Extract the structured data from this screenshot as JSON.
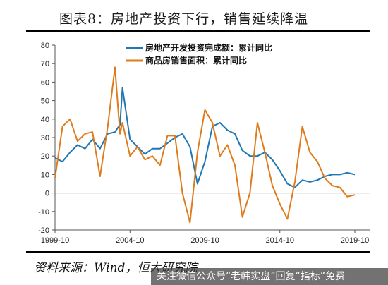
{
  "figure": {
    "title": "图表8：房地产投资下行，销售延续降温",
    "source": "资料来源：Wind，恒大研究院",
    "watermark": "关注微信公众号“老韩实盘”回复“指标”免费"
  },
  "chart_data": {
    "type": "line",
    "title": "",
    "xlabel": "",
    "ylabel": "",
    "ylim": [
      -20,
      80
    ],
    "yticks": [
      -20,
      -10,
      0,
      10,
      20,
      30,
      40,
      50,
      60,
      70,
      80
    ],
    "x_tick_labels": [
      "1999-10",
      "2004-10",
      "2009-10",
      "2014-10",
      "2019-10"
    ],
    "x_tick_values": [
      "1999-10",
      "2004-10",
      "2009-10",
      "2014-10",
      "2019-10"
    ],
    "x": [
      "1999-10",
      "2000-04",
      "2000-10",
      "2001-04",
      "2001-10",
      "2002-04",
      "2002-10",
      "2003-04",
      "2003-10",
      "2004-02",
      "2004-04",
      "2004-10",
      "2005-04",
      "2005-10",
      "2006-04",
      "2006-10",
      "2007-04",
      "2007-10",
      "2008-04",
      "2008-10",
      "2009-04",
      "2009-10",
      "2010-04",
      "2010-10",
      "2011-04",
      "2011-10",
      "2012-04",
      "2012-10",
      "2013-04",
      "2013-10",
      "2014-04",
      "2014-10",
      "2015-04",
      "2015-10",
      "2016-04",
      "2016-10",
      "2017-04",
      "2017-10",
      "2018-04",
      "2018-10",
      "2019-04",
      "2019-10"
    ],
    "legend_position": "top",
    "grid": false,
    "series": [
      {
        "name": "房地产开发投资完成额：累计同比",
        "color": "#1f77b4",
        "values": [
          19,
          17,
          22,
          26,
          24,
          29,
          24,
          32,
          33,
          37,
          57,
          29,
          25,
          21,
          24,
          24,
          27,
          30,
          32,
          25,
          5,
          17,
          36,
          38,
          34,
          32,
          23,
          20,
          20,
          22,
          18,
          12,
          5,
          3,
          7,
          6,
          7,
          9,
          10,
          10,
          11,
          10
        ]
      },
      {
        "name": "商品房销售面积：累计同比",
        "color": "#e07b1a",
        "values": [
          8,
          36,
          40,
          28,
          32,
          33,
          9,
          35,
          68,
          32,
          38,
          20,
          25,
          18,
          20,
          15,
          31,
          31,
          0,
          -16,
          22,
          45,
          38,
          20,
          26,
          15,
          -13,
          0,
          38,
          22,
          4,
          -6,
          -14,
          6,
          36,
          22,
          17,
          8,
          4,
          3,
          -2,
          -1
        ]
      }
    ]
  }
}
